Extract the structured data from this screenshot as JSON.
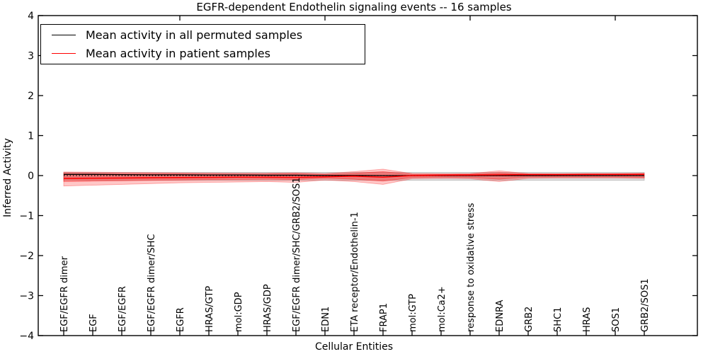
{
  "chart_data": {
    "type": "line",
    "title": "EGFR-dependent Endothelin signaling events -- 16 samples",
    "xlabel": "Cellular Entities",
    "ylabel": "Inferred Activity",
    "ylim": [
      -4,
      4
    ],
    "yticks": [
      4,
      3,
      2,
      1,
      0,
      -1,
      -2,
      -3,
      -4
    ],
    "ytick_labels": [
      "4",
      "3",
      "2",
      "1",
      "0",
      "−1",
      "−2",
      "−3",
      "−4"
    ],
    "top_xtick_values": [
      5,
      10,
      15,
      20
    ],
    "grid": false,
    "legend_position": "upper-left",
    "categories": [
      "EGF/EGFR dimer",
      "EGF",
      "EGF/EGFR",
      "EGF/EGFR dimer/SHC",
      "EGFR",
      "HRAS/GTP",
      "mol:GDP",
      "HRAS/GDP",
      "EGF/EGFR dimer/SHC/GRB2/SOS1",
      "EDN1",
      "ETA receptor/Endothelin-1",
      "FRAP1",
      "mol:GTP",
      "mol:Ca2+",
      "response to oxidative stress",
      "EDNRA",
      "GRB2",
      "SHC1",
      "HRAS",
      "SOS1",
      "GRB2/SOS1"
    ],
    "series": [
      {
        "name": "Mean activity in all permuted samples",
        "color": "#000000",
        "style": "solid",
        "values": [
          0.03,
          0.03,
          0.025,
          0.02,
          0.02,
          0.015,
          0.015,
          0.01,
          0.01,
          0.005,
          0.005,
          0.0,
          0.0,
          0.0,
          0.0,
          0.0,
          0.0,
          0.0,
          0.0,
          0.0,
          0.0
        ]
      },
      {
        "name": "Mean activity in patient samples",
        "color": "#ff0000",
        "style": "solid",
        "values": [
          -0.07,
          -0.065,
          -0.06,
          -0.055,
          -0.05,
          -0.045,
          -0.04,
          -0.04,
          -0.045,
          -0.03,
          -0.015,
          -0.04,
          0.0,
          0.01,
          0.015,
          0.02,
          0.025,
          0.025,
          0.03,
          0.03,
          0.03
        ]
      }
    ],
    "zero_line": {
      "value": 0,
      "color": "#000000",
      "style": "dotted"
    },
    "bands": [
      {
        "name": "permuted-std-band",
        "color": "#000000",
        "opacity": 0.13,
        "upper": [
          0.08,
          0.08,
          0.08,
          0.08,
          0.08,
          0.08,
          0.08,
          0.08,
          0.08,
          0.08,
          0.08,
          0.08,
          0.08,
          0.08,
          0.08,
          0.08,
          0.08,
          0.08,
          0.08,
          0.08,
          0.08
        ],
        "lower": [
          -0.12,
          -0.12,
          -0.12,
          -0.12,
          -0.12,
          -0.12,
          -0.12,
          -0.12,
          -0.12,
          -0.12,
          -0.12,
          -0.12,
          -0.12,
          -0.12,
          -0.12,
          -0.12,
          -0.12,
          -0.12,
          -0.12,
          -0.12,
          -0.12
        ]
      },
      {
        "name": "patient-outer-band",
        "color": "#ff0000",
        "opacity": 0.22,
        "upper": [
          0.09,
          0.085,
          0.08,
          0.075,
          0.07,
          0.065,
          0.06,
          0.06,
          0.07,
          0.05,
          0.1,
          0.16,
          0.05,
          0.045,
          0.05,
          0.12,
          0.05,
          0.045,
          0.05,
          0.05,
          0.06
        ],
        "lower": [
          -0.26,
          -0.24,
          -0.22,
          -0.2,
          -0.18,
          -0.17,
          -0.16,
          -0.15,
          -0.17,
          -0.11,
          -0.15,
          -0.22,
          -0.08,
          -0.07,
          -0.08,
          -0.15,
          -0.07,
          -0.06,
          -0.06,
          -0.06,
          -0.07
        ]
      },
      {
        "name": "patient-inner-band",
        "color": "#ff0000",
        "opacity": 0.3,
        "upper": [
          0.06,
          0.055,
          0.05,
          0.05,
          0.045,
          0.04,
          0.04,
          0.04,
          0.045,
          0.03,
          0.06,
          0.1,
          0.035,
          0.03,
          0.035,
          0.07,
          0.035,
          0.035,
          0.035,
          0.04,
          0.045
        ],
        "lower": [
          -0.15,
          -0.14,
          -0.13,
          -0.12,
          -0.11,
          -0.1,
          -0.095,
          -0.09,
          -0.1,
          -0.065,
          -0.09,
          -0.14,
          -0.05,
          -0.04,
          -0.05,
          -0.09,
          -0.04,
          -0.04,
          -0.04,
          -0.04,
          -0.045
        ]
      }
    ],
    "legend": [
      {
        "label": "Mean activity in all permuted samples",
        "color": "#000000"
      },
      {
        "label": "Mean activity in patient samples",
        "color": "#ff0000"
      }
    ]
  }
}
